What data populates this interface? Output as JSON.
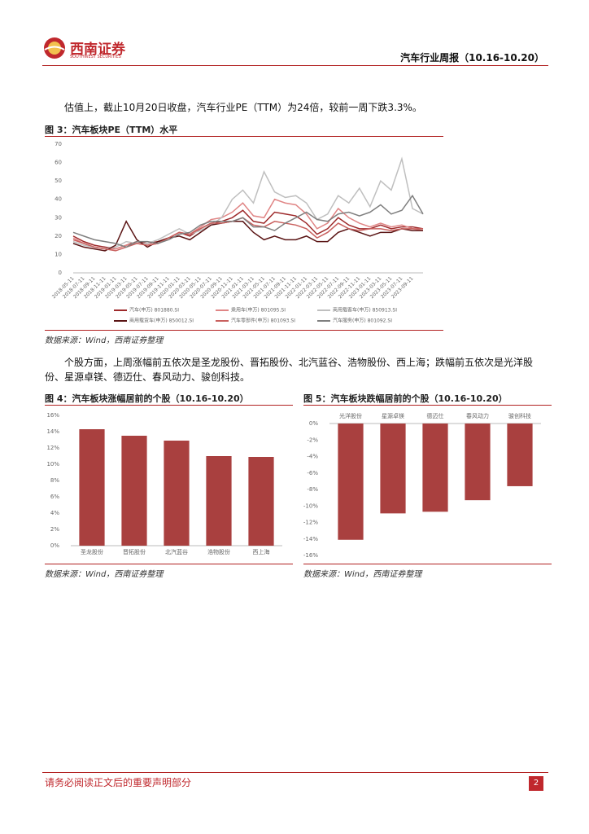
{
  "header": {
    "logo": "西南证券",
    "logo_sub": "SOUTHWEST SECURITIES",
    "title": "汽车行业周报（10.16-10.20）"
  },
  "paragraphs": [
    "估值上，截止10月20日收盘，汽车行业PE（TTM）为24倍，较前一周下跌3.3%。",
    "个股方面，上周涨幅前五依次是圣龙股份、晋拓股份、北汽蓝谷、浩物股份、西上海；跌幅前五依次是光洋股份、星源卓镁、德迈仕、春风动力、骏创科技。"
  ],
  "chart_data": [
    {
      "type": "line",
      "title": "图 3：汽车板块PE（TTM）水平",
      "source": "数据来源：Wind，西南证券整理",
      "categories": [
        "2018-05-11",
        "2018-07-11",
        "2018-09-11",
        "2018-11-11",
        "2019-01-11",
        "2019-03-11",
        "2019-05-11",
        "2019-07-11",
        "2019-09-11",
        "2019-11-11",
        "2020-01-11",
        "2020-03-11",
        "2020-05-11",
        "2020-07-11",
        "2020-09-11",
        "2020-11-11",
        "2021-01-11",
        "2021-03-11",
        "2021-05-11",
        "2021-07-11",
        "2021-09-11",
        "2021-11-11",
        "2022-01-11",
        "2022-03-11",
        "2022-05-11",
        "2022-07-11",
        "2022-09-11",
        "2022-11-11",
        "2023-01-11",
        "2023-03-11",
        "2023-05-11",
        "2023-07-11",
        "2023-09-11",
        null
      ],
      "ylim": [
        0,
        70
      ],
      "yticks": [
        0,
        10,
        20,
        30,
        40,
        50,
        60,
        70
      ],
      "grid": false,
      "series": [
        {
          "name": "汽车(申万) 801880.SI",
          "color": "#9e2a2b",
          "values": [
            20,
            17,
            15,
            14,
            13,
            15,
            17,
            16,
            17,
            19,
            22,
            20,
            24,
            27,
            28,
            30,
            34,
            28,
            27,
            33,
            32,
            31,
            27,
            21,
            24,
            30,
            26,
            24,
            24,
            26,
            24,
            25,
            25,
            24
          ]
        },
        {
          "name": "乘用车(申万) 801095.SI",
          "color": "#e08585",
          "values": [
            19,
            16,
            14,
            13,
            13,
            15,
            16,
            15,
            16,
            19,
            22,
            21,
            25,
            29,
            30,
            33,
            38,
            31,
            30,
            40,
            38,
            37,
            32,
            24,
            27,
            35,
            30,
            27,
            25,
            27,
            25,
            26,
            24,
            23
          ]
        },
        {
          "name": "商用载客车(申万) 850913.SI",
          "color": "#bfbfbf",
          "values": [
            17,
            15,
            14,
            13,
            14,
            17,
            16,
            16,
            18,
            21,
            24,
            21,
            23,
            26,
            30,
            40,
            45,
            38,
            55,
            44,
            41,
            42,
            38,
            29,
            32,
            42,
            38,
            46,
            36,
            50,
            45,
            62,
            35,
            32
          ]
        },
        {
          "name": "商用载货车(申万) 850012.SI",
          "color": "#5a1414",
          "values": [
            16,
            14,
            13,
            12,
            15,
            28,
            18,
            14,
            17,
            19,
            20,
            18,
            22,
            26,
            27,
            28,
            28,
            22,
            18,
            20,
            18,
            18,
            20,
            17,
            17,
            22,
            24,
            22,
            20,
            22,
            22,
            24,
            23,
            23
          ]
        },
        {
          "name": "汽车零部件(申万) 801093.SI",
          "color": "#c9605e",
          "values": [
            18,
            16,
            14,
            13,
            12,
            14,
            16,
            15,
            16,
            19,
            22,
            21,
            24,
            27,
            27,
            28,
            30,
            26,
            25,
            28,
            27,
            26,
            24,
            19,
            22,
            27,
            24,
            23,
            24,
            24,
            23,
            24,
            24,
            24
          ]
        },
        {
          "name": "汽车服务(申万) 801092.SI",
          "color": "#7f7f7f",
          "values": [
            22,
            20,
            18,
            17,
            16,
            14,
            17,
            17,
            16,
            18,
            21,
            22,
            26,
            28,
            28,
            28,
            30,
            25,
            25,
            23,
            27,
            30,
            33,
            29,
            28,
            32,
            33,
            31,
            33,
            37,
            32,
            34,
            42,
            32
          ]
        }
      ]
    },
    {
      "type": "bar",
      "title": "图 4：汽车板块涨幅居前的个股（10.16-10.20）",
      "source": "数据来源：Wind，西南证券整理",
      "categories": [
        "圣龙股份",
        "晋拓股份",
        "北汽蓝谷",
        "浩物股份",
        "西上海"
      ],
      "values": [
        14.3,
        13.5,
        12.9,
        11.0,
        10.9
      ],
      "color": "#a9403f",
      "ylim": [
        0,
        16
      ],
      "yticks": [
        {
          "value": 0,
          "label": "0%"
        },
        {
          "value": 2,
          "label": "2%"
        },
        {
          "value": 4,
          "label": "4%"
        },
        {
          "value": 6,
          "label": "6%"
        },
        {
          "value": 8,
          "label": "8%"
        },
        {
          "value": 10,
          "label": "10%"
        },
        {
          "value": 12,
          "label": "12%"
        },
        {
          "value": 14,
          "label": "14%"
        },
        {
          "value": 16,
          "label": "16%"
        }
      ],
      "grid": false
    },
    {
      "type": "bar",
      "title": "图 5：汽车板块跌幅居前的个股（10.16-10.20）",
      "source": "数据来源：Wind，西南证券整理",
      "categories": [
        "光洋股份",
        "星源卓镁",
        "德迈仕",
        "春风动力",
        "骏创科技"
      ],
      "values": [
        -14.1,
        -10.9,
        -10.7,
        -9.3,
        -7.6
      ],
      "color": "#a9403f",
      "ylim": [
        -16,
        0
      ],
      "yticks": [
        {
          "value": 0,
          "label": "0%"
        },
        {
          "value": -2,
          "label": "-2%"
        },
        {
          "value": -4,
          "label": "-4%"
        },
        {
          "value": -6,
          "label": "-6%"
        },
        {
          "value": -8,
          "label": "-8%"
        },
        {
          "value": -10,
          "label": "-10%"
        },
        {
          "value": -12,
          "label": "-12%"
        },
        {
          "value": -14,
          "label": "-14%"
        },
        {
          "value": -16,
          "label": "-16%"
        }
      ],
      "grid": false
    }
  ],
  "footer": {
    "disclaimer": "请务必阅读正文后的重要声明部分",
    "page": 2
  }
}
